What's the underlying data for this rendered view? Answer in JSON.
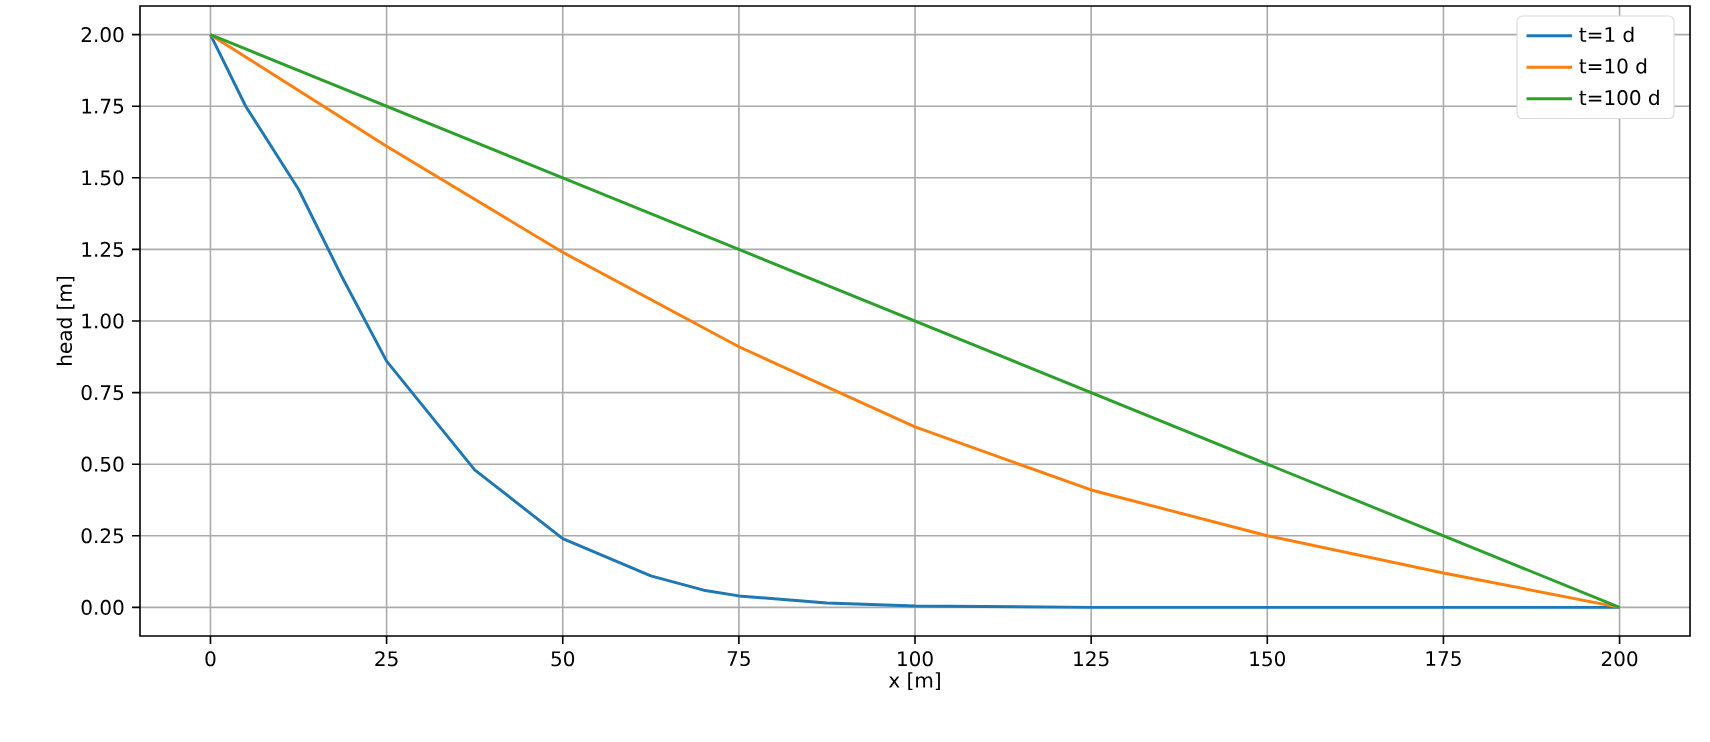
{
  "chart_data": {
    "type": "line",
    "xlabel": "x [m]",
    "ylabel": "head [m]",
    "xlim": [
      -10,
      210
    ],
    "ylim": [
      -0.1,
      2.1
    ],
    "xticks": [
      0,
      25,
      50,
      75,
      100,
      125,
      150,
      175,
      200
    ],
    "yticks": [
      {
        "value": 0,
        "label": "0.00"
      },
      {
        "value": 0.25,
        "label": "0.25"
      },
      {
        "value": 0.5,
        "label": "0.50"
      },
      {
        "value": 0.75,
        "label": "0.75"
      },
      {
        "value": 1,
        "label": "1.00"
      },
      {
        "value": 1.25,
        "label": "1.25"
      },
      {
        "value": 1.5,
        "label": "1.50"
      },
      {
        "value": 1.75,
        "label": "1.75"
      },
      {
        "value": 2,
        "label": "2.00"
      }
    ],
    "grid": true,
    "legend": "top right",
    "line_style": "solid",
    "series": [
      {
        "name": "t=1 d",
        "color": "#1f77b4",
        "x": [
          0,
          5,
          12.5,
          18.75,
          25,
          37.5,
          50,
          62.5,
          70,
          75,
          87.5,
          100,
          125,
          150,
          200
        ],
        "values": [
          2,
          1.75,
          1.46,
          1.15,
          0.86,
          0.48,
          0.24,
          0.11,
          0.06,
          0.04,
          0.015,
          0.005,
          0,
          0,
          0
        ]
      },
      {
        "name": "t=10 d",
        "color": "#ff7f0e",
        "x": [
          0,
          25,
          50,
          75,
          100,
          125,
          150,
          175,
          200
        ],
        "values": [
          2,
          1.61,
          1.24,
          0.91,
          0.63,
          0.41,
          0.25,
          0.12,
          0
        ]
      },
      {
        "name": "t=100 d",
        "color": "#2ca02c",
        "x": [
          0,
          50,
          100,
          150,
          200
        ],
        "values": [
          2,
          1.5,
          1,
          0.5,
          0
        ]
      }
    ]
  }
}
